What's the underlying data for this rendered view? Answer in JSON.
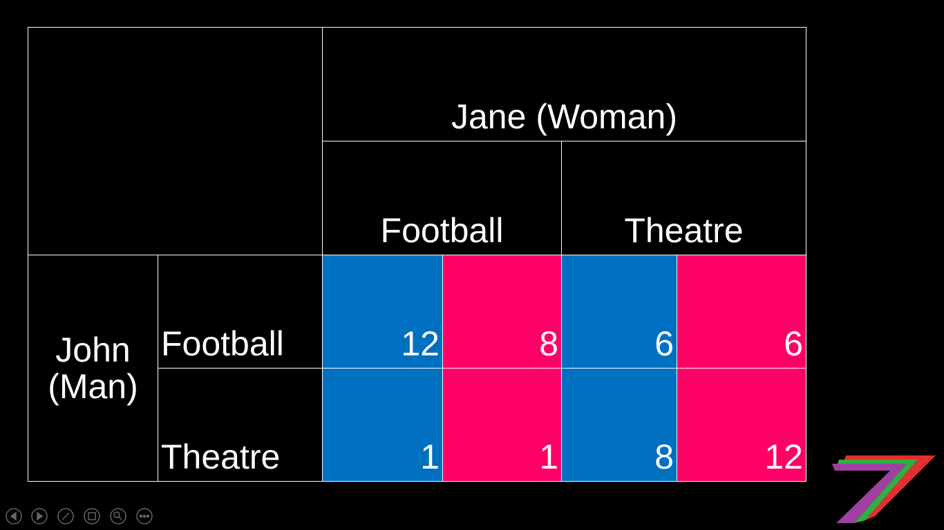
{
  "table": {
    "column_player": "Jane (Woman)",
    "column_options": [
      "Football",
      "Theatre"
    ],
    "row_player": "John (Man)",
    "rows": [
      {
        "option": "Football",
        "payoffs": [
          12,
          8,
          6,
          6
        ]
      },
      {
        "option": "Theatre",
        "payoffs": [
          1,
          1,
          8,
          12
        ]
      }
    ]
  }
}
